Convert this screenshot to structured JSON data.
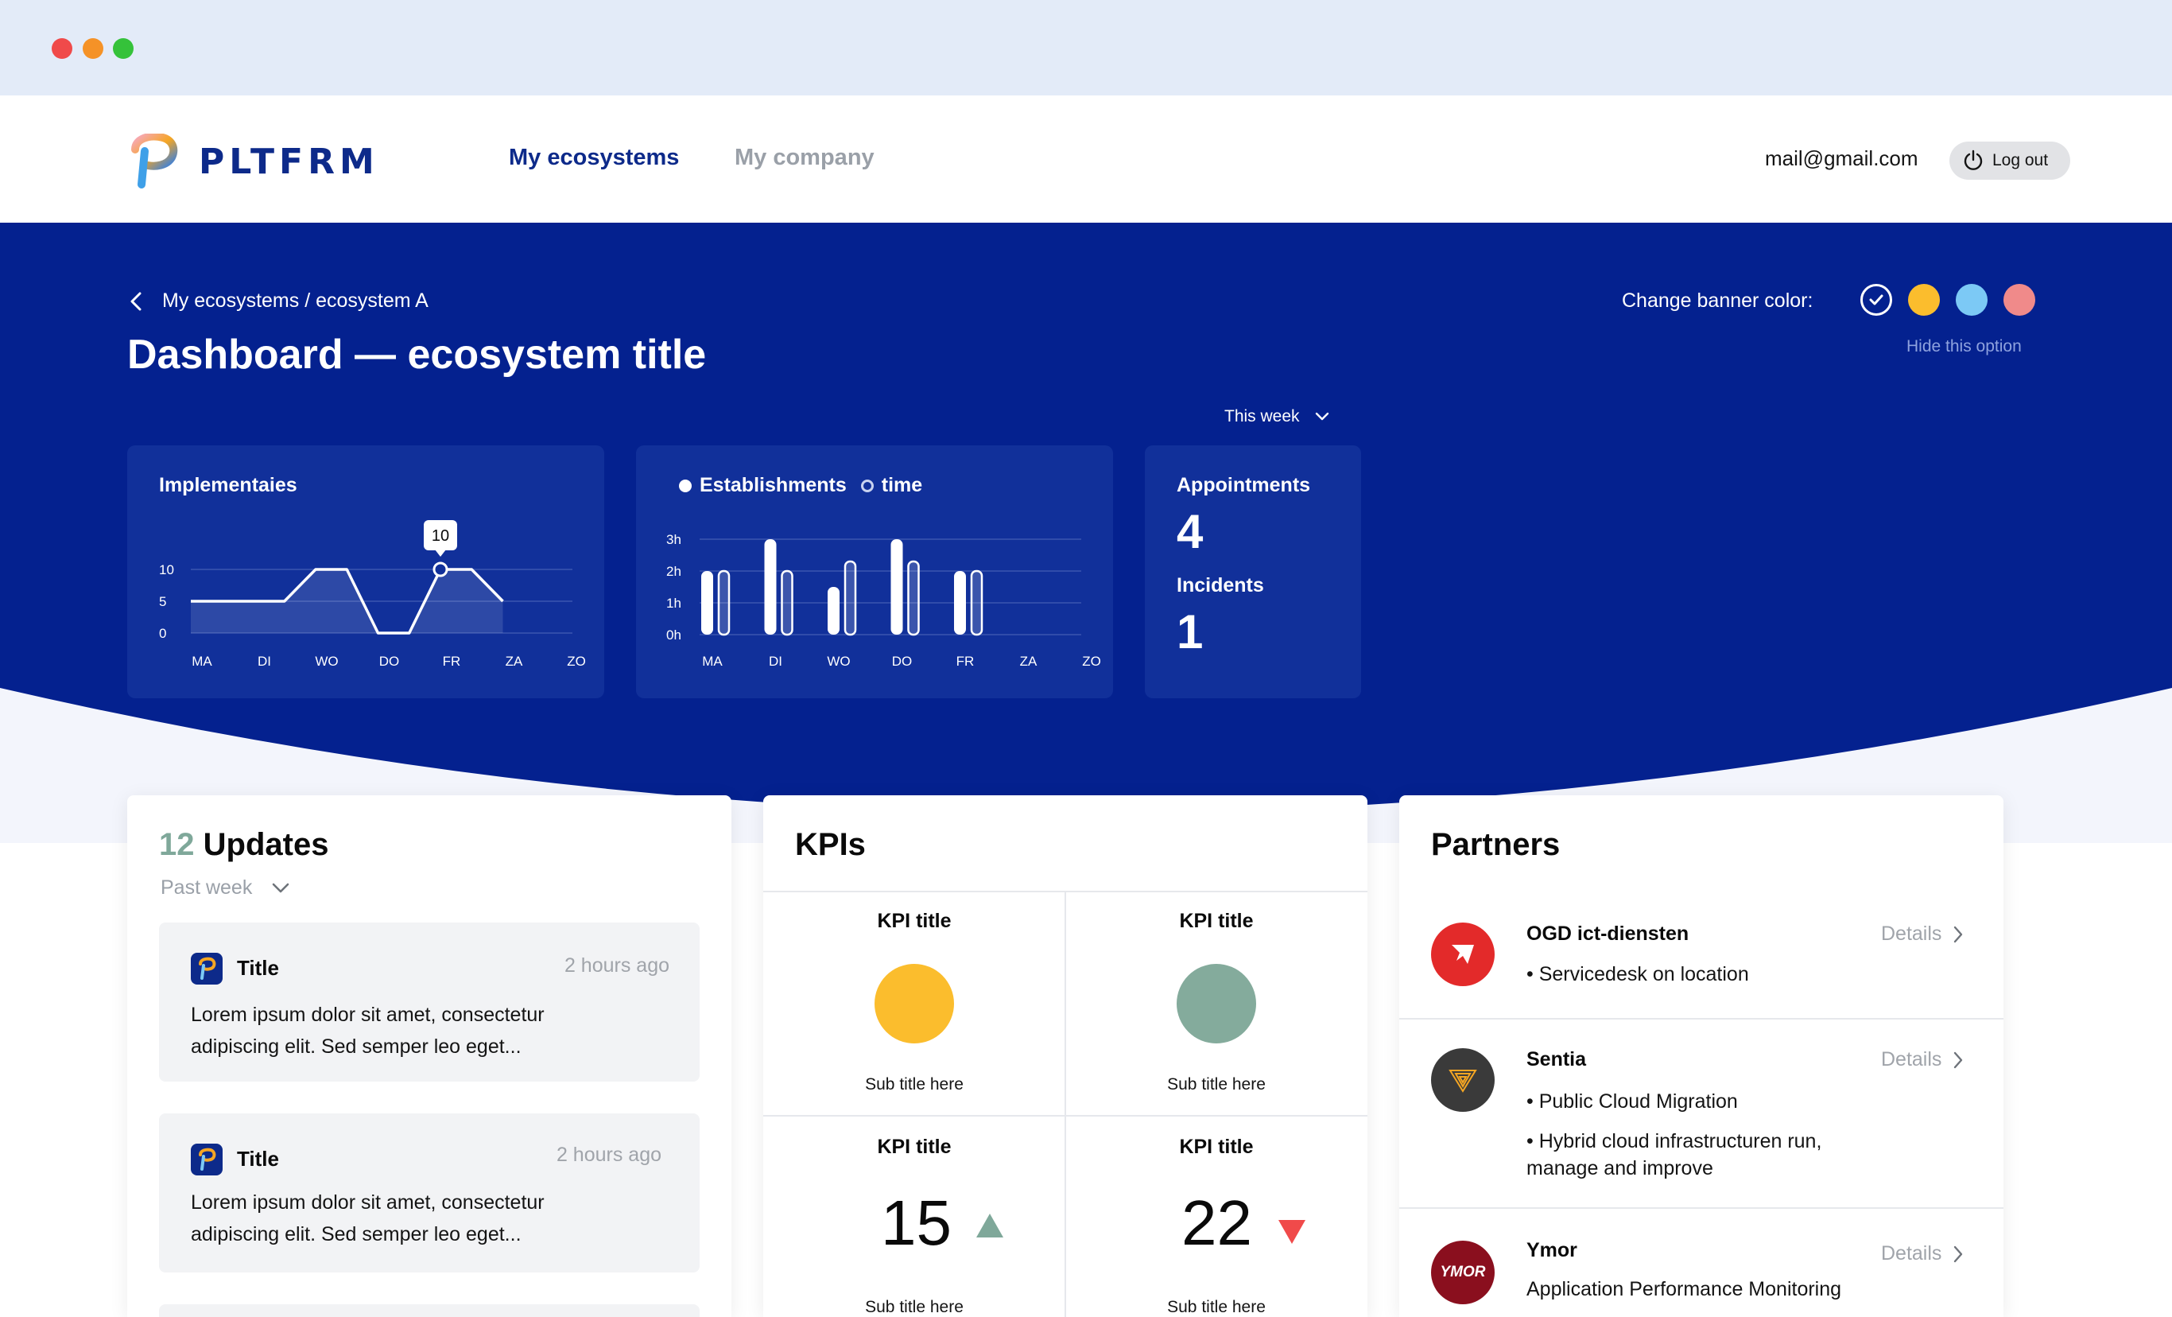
{
  "app": {
    "logo_text": "PLTFRM",
    "nav": [
      {
        "label": "My ecosystems"
      },
      {
        "label": "My company"
      }
    ],
    "user_email": "mail@gmail.com",
    "logout_label": "Log out"
  },
  "banner": {
    "breadcrumb": "My ecosystems / ecosystem A",
    "title": "Dashboard  — ecosystem title",
    "change_color_label": "Change banner color:",
    "hide_option_label": "Hide this option",
    "period_select": "This week",
    "colors": [
      "#04218f",
      "#fbbd2d",
      "#7cc9f5",
      "#f08a8a"
    ]
  },
  "cards": {
    "implementaties": {
      "title": "Implementaies",
      "tooltip": "10"
    },
    "establishments": {
      "legend_primary": "Establishments",
      "legend_secondary": "time"
    },
    "appointments": {
      "label": "Appointments",
      "value": "4",
      "incidents_label": "Incidents",
      "incidents_value": "1"
    }
  },
  "chart_data": [
    {
      "type": "area",
      "title": "Implementaies",
      "categories": [
        "MA",
        "DI",
        "WO",
        "DO",
        "FR",
        "ZA",
        "ZO"
      ],
      "y_ticks": [
        "10",
        "5",
        "0"
      ],
      "x": [
        0,
        1,
        1.5,
        2,
        2.5,
        3,
        3.5,
        4,
        4.5,
        5
      ],
      "values": [
        5,
        5,
        5,
        10,
        10,
        0,
        0,
        10,
        10,
        5
      ],
      "highlight": {
        "category": "FR",
        "value": 10
      },
      "ylim": [
        0,
        10
      ]
    },
    {
      "type": "bar",
      "title": "",
      "categories": [
        "MA",
        "DI",
        "WO",
        "DO",
        "FR",
        "ZA",
        "ZO"
      ],
      "y_ticks": [
        "3h",
        "2h",
        "1h",
        "0h"
      ],
      "ylim": [
        0,
        3
      ],
      "series": [
        {
          "name": "Establishments",
          "values": [
            2,
            3,
            1.5,
            3,
            2,
            0,
            0
          ]
        },
        {
          "name": "time",
          "values": [
            2,
            2,
            2.3,
            2.3,
            2,
            0,
            0
          ]
        }
      ]
    }
  ],
  "updates": {
    "count": "12",
    "title": "Updates",
    "period": "Past week",
    "items": [
      {
        "title": "Title",
        "time": "2 hours ago",
        "body_line1": "Lorem ipsum dolor sit amet, consectetur",
        "body_line2": "adipiscing elit. Sed semper leo eget..."
      },
      {
        "title": "Title",
        "time": "2 hours ago",
        "body_line1": "Lorem ipsum dolor sit amet, consectetur",
        "body_line2": "adipiscing elit. Sed semper leo eget..."
      }
    ]
  },
  "kpis": {
    "title": "KPIs",
    "items": [
      {
        "title": "KPI title",
        "sub": "Sub title here",
        "color": "#fbbd2d"
      },
      {
        "title": "KPI title",
        "sub": "Sub title here",
        "color": "#84ab9c"
      },
      {
        "title": "KPI title",
        "sub": "Sub title here",
        "value": "15",
        "trend": "up"
      },
      {
        "title": "KPI title",
        "sub": "Sub title here",
        "value": "22",
        "trend": "down"
      }
    ]
  },
  "partners": {
    "title": "Partners",
    "details_label": "Details",
    "items": [
      {
        "name": "OGD ict-diensten",
        "lines": [
          "•  Servicedesk on location"
        ],
        "logo_color": "#e32a2a"
      },
      {
        "name": "Sentia",
        "lines": [
          "•  Public Cloud Migration",
          "•  Hybrid cloud infrastructuren run,",
          "manage and improve"
        ],
        "logo_color": "#3a3a3a"
      },
      {
        "name": "Ymor",
        "lines": [
          "Application Performance Monitoring"
        ],
        "logo_text": "YMOR",
        "logo_color": "#8a0f1e"
      }
    ]
  }
}
